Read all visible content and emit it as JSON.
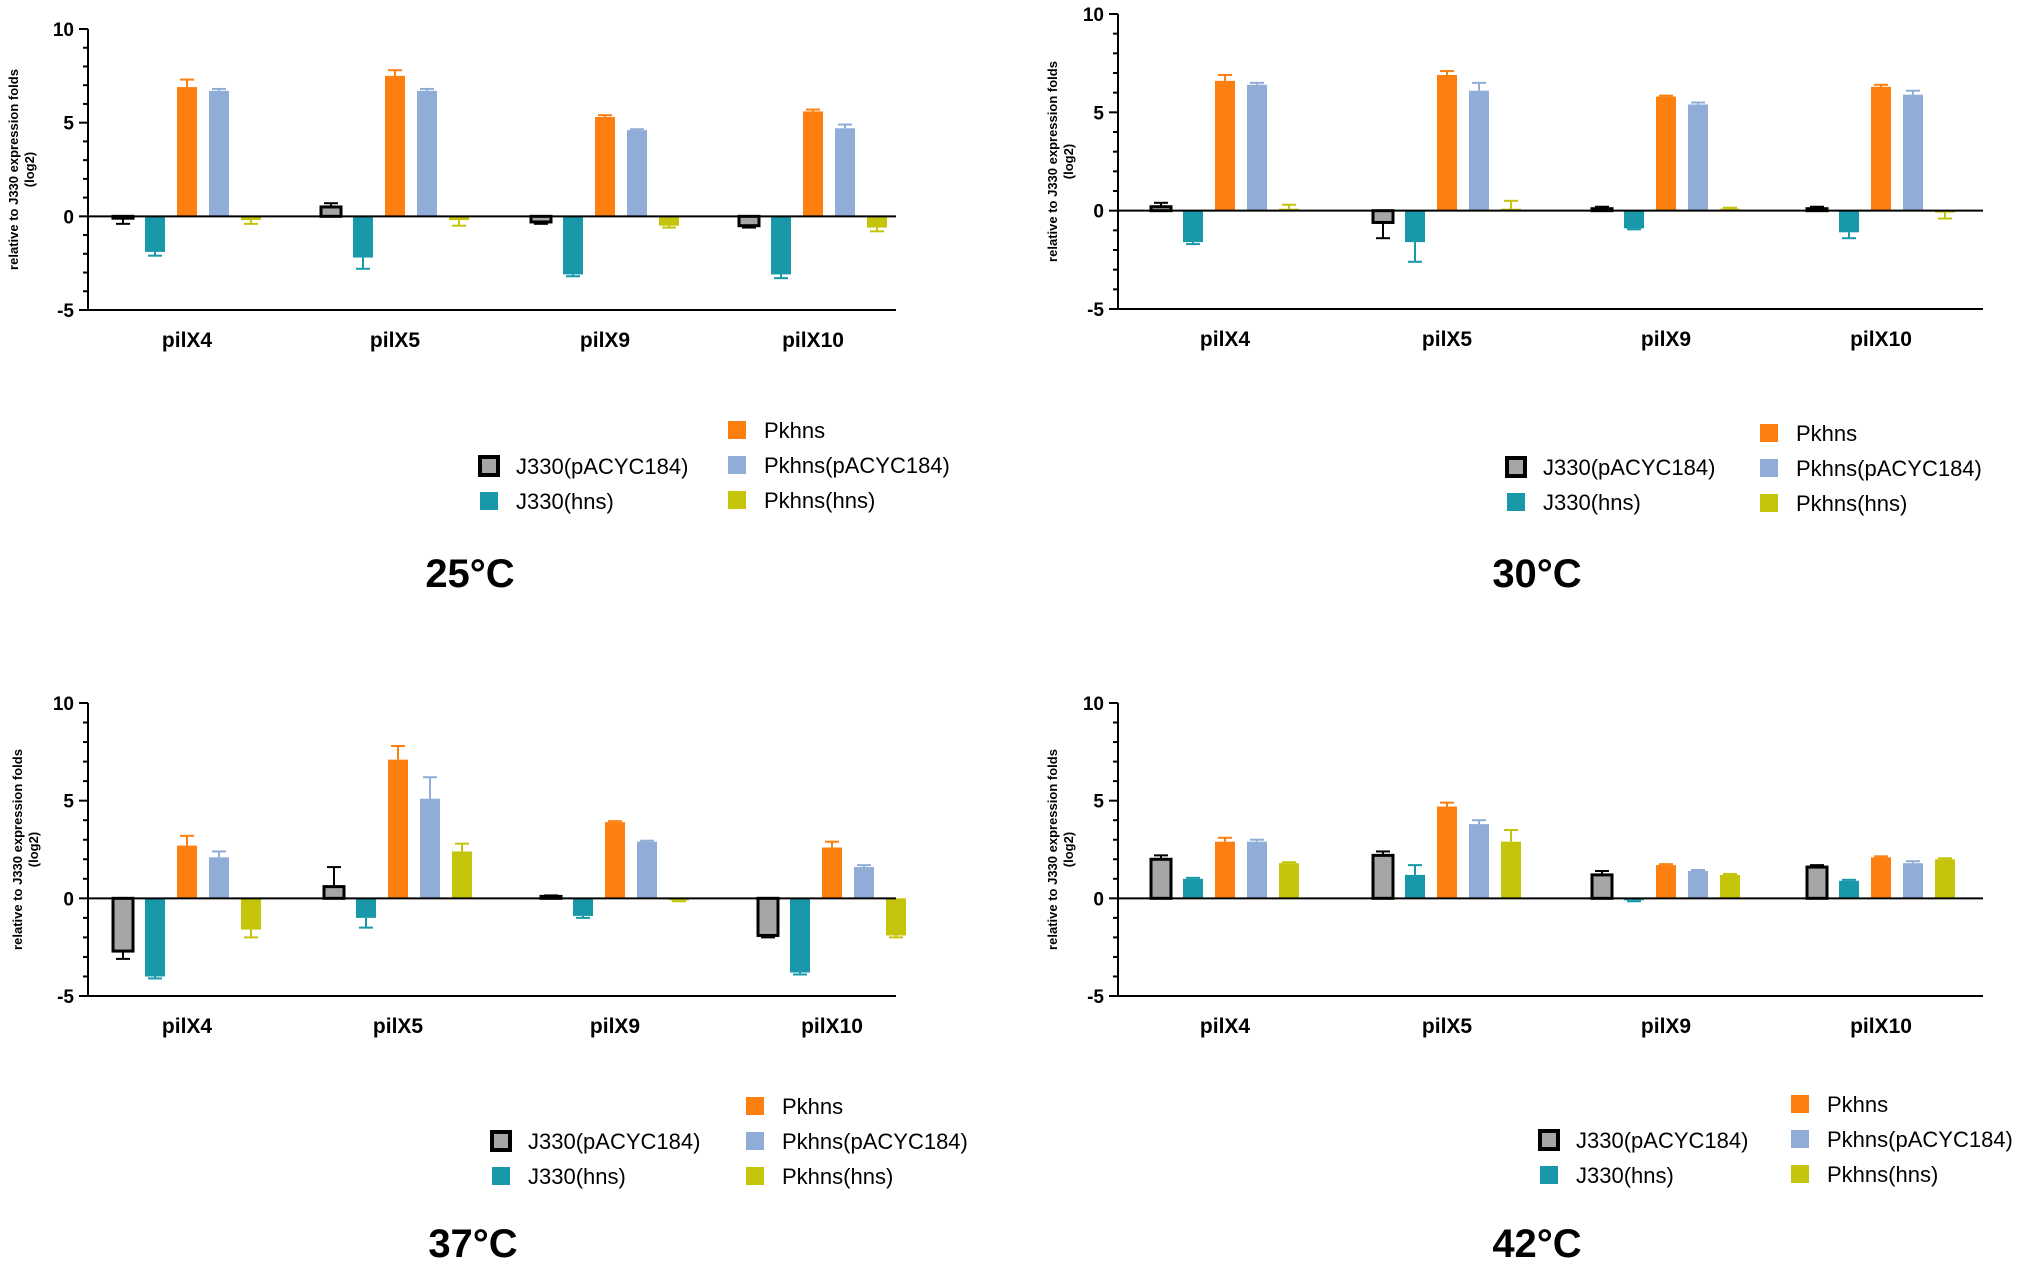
{
  "legend": [
    {
      "name": "J330(pACYC184)",
      "fill": "#a6a6a6",
      "stroke": "#000000"
    },
    {
      "name": "J330(hns)",
      "fill": "#1898a8",
      "stroke": "#1898a8"
    },
    {
      "name": "Pkhns",
      "fill": "#fd7f0f",
      "stroke": "#fd7f0f"
    },
    {
      "name": "Pkhns(pACYC184)",
      "fill": "#8fadd7",
      "stroke": "#8fadd7"
    },
    {
      "name": "Pkhns(hns)",
      "fill": "#c4c40a",
      "stroke": "#c4c40a"
    }
  ],
  "chart_data": [
    {
      "type": "bar",
      "title": "25°C",
      "ylabel": "relative to J330 expression folds (log2)",
      "ylabel_lines": [
        "relative to J330 expression folds",
        "(log2)"
      ],
      "ylim": [
        -5,
        10
      ],
      "yticks": [
        -5,
        0,
        5,
        10
      ],
      "categories": [
        "pilX4",
        "pilX5",
        "pilX9",
        "pilX10"
      ],
      "series": [
        {
          "name": "J330(pACYC184)",
          "values": [
            -0.1,
            0.5,
            -0.3,
            -0.5
          ],
          "errors": [
            0.3,
            0.2,
            0.1,
            0.1
          ]
        },
        {
          "name": "J330(hns)",
          "values": [
            -1.9,
            -2.2,
            -3.1,
            -3.1
          ],
          "errors": [
            0.2,
            0.6,
            0.1,
            0.2
          ]
        },
        {
          "name": "Pkhns",
          "values": [
            6.9,
            7.5,
            5.3,
            5.6
          ],
          "errors": [
            0.4,
            0.3,
            0.1,
            0.1
          ]
        },
        {
          "name": "Pkhns(pACYC184)",
          "values": [
            6.7,
            6.7,
            4.6,
            4.7
          ],
          "errors": [
            0.1,
            0.1,
            0.05,
            0.2
          ]
        },
        {
          "name": "Pkhns(hns)",
          "values": [
            -0.2,
            -0.2,
            -0.5,
            -0.6
          ],
          "errors": [
            0.2,
            0.3,
            0.1,
            0.2
          ]
        }
      ]
    },
    {
      "type": "bar",
      "title": "30°C",
      "ylabel": "relative to J330 expression folds (log2)",
      "ylabel_lines": [
        "relative to J330 expression folds",
        "(log2)"
      ],
      "ylim": [
        -5,
        10
      ],
      "yticks": [
        -5,
        0,
        5,
        10
      ],
      "categories": [
        "pilX4",
        "pilX5",
        "pilX9",
        "pilX10"
      ],
      "series": [
        {
          "name": "J330(pACYC184)",
          "values": [
            0.2,
            -0.6,
            0.1,
            0.1
          ],
          "errors": [
            0.2,
            0.8,
            0.1,
            0.1
          ]
        },
        {
          "name": "J330(hns)",
          "values": [
            -1.6,
            -1.6,
            -0.9,
            -1.1
          ],
          "errors": [
            0.1,
            1.0,
            0.05,
            0.3
          ]
        },
        {
          "name": "Pkhns",
          "values": [
            6.6,
            6.9,
            5.8,
            6.3
          ],
          "errors": [
            0.3,
            0.2,
            0.05,
            0.1
          ]
        },
        {
          "name": "Pkhns(pACYC184)",
          "values": [
            6.4,
            6.1,
            5.4,
            5.9
          ],
          "errors": [
            0.1,
            0.4,
            0.1,
            0.2
          ]
        },
        {
          "name": "Pkhns(hns)",
          "values": [
            0.1,
            0.1,
            0.1,
            -0.1
          ],
          "errors": [
            0.2,
            0.4,
            0.05,
            0.3
          ]
        }
      ]
    },
    {
      "type": "bar",
      "title": "37°C",
      "ylabel": "relative to J330 expression folds (log2)",
      "ylabel_lines": [
        "relative to J330 expression folds",
        "(log2)"
      ],
      "ylim": [
        -5,
        10
      ],
      "yticks": [
        -5,
        0,
        5,
        10
      ],
      "categories": [
        "pilX4",
        "pilX5",
        "pilX9",
        "pilX10"
      ],
      "series": [
        {
          "name": "J330(pACYC184)",
          "values": [
            -2.7,
            0.6,
            0.1,
            -1.9
          ],
          "errors": [
            0.4,
            1.0,
            0.05,
            0.1
          ]
        },
        {
          "name": "J330(hns)",
          "values": [
            -4.0,
            -1.0,
            -0.9,
            -3.8
          ],
          "errors": [
            0.1,
            0.5,
            0.1,
            0.1
          ]
        },
        {
          "name": "Pkhns",
          "values": [
            2.7,
            7.1,
            3.9,
            2.6
          ],
          "errors": [
            0.5,
            0.7,
            0.05,
            0.3
          ]
        },
        {
          "name": "Pkhns(pACYC184)",
          "values": [
            2.1,
            5.1,
            2.9,
            1.6
          ],
          "errors": [
            0.3,
            1.1,
            0.05,
            0.1
          ]
        },
        {
          "name": "Pkhns(hns)",
          "values": [
            -1.6,
            2.4,
            -0.1,
            -1.9
          ],
          "errors": [
            0.4,
            0.4,
            0.05,
            0.1
          ]
        }
      ]
    },
    {
      "type": "bar",
      "title": "42°C",
      "ylabel": "relative to J330 expression folds (log2)",
      "ylabel_lines": [
        "relative to J330 expression folds",
        "(log2)"
      ],
      "ylim": [
        -5,
        10
      ],
      "yticks": [
        -5,
        0,
        5,
        10
      ],
      "categories": [
        "pilX4",
        "pilX5",
        "pilX9",
        "pilX10"
      ],
      "series": [
        {
          "name": "J330(pACYC184)",
          "values": [
            2.0,
            2.2,
            1.2,
            1.6
          ],
          "errors": [
            0.2,
            0.2,
            0.2,
            0.1
          ]
        },
        {
          "name": "J330(hns)",
          "values": [
            1.0,
            1.2,
            -0.1,
            0.9
          ],
          "errors": [
            0.05,
            0.5,
            0.05,
            0.05
          ]
        },
        {
          "name": "Pkhns",
          "values": [
            2.9,
            4.7,
            1.7,
            2.1
          ],
          "errors": [
            0.2,
            0.2,
            0.05,
            0.05
          ]
        },
        {
          "name": "Pkhns(pACYC184)",
          "values": [
            2.9,
            3.8,
            1.4,
            1.8
          ],
          "errors": [
            0.1,
            0.2,
            0.05,
            0.1
          ]
        },
        {
          "name": "Pkhns(hns)",
          "values": [
            1.8,
            2.9,
            1.2,
            2.0
          ],
          "errors": [
            0.05,
            0.6,
            0.05,
            0.05
          ]
        }
      ]
    }
  ]
}
